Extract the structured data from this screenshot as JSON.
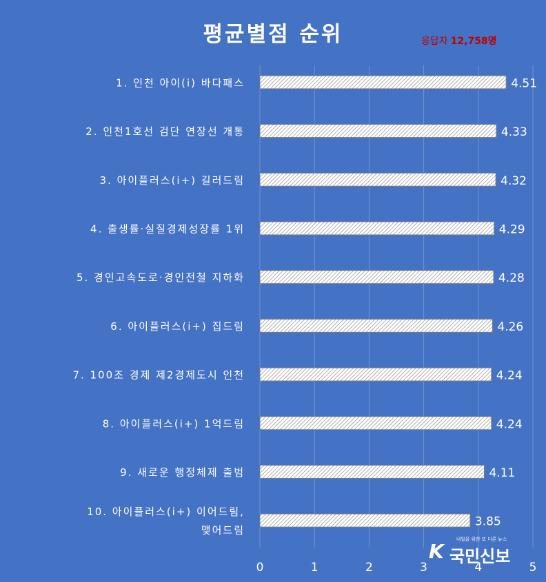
{
  "title": "평균별점 순위",
  "respondents": {
    "label": "응답자",
    "count": "12,758명"
  },
  "watermark": {
    "tagline": "내일을 위한 또 다른 뉴스",
    "name": "국민신보",
    "mark": "K"
  },
  "chart_data": {
    "type": "bar",
    "orientation": "horizontal",
    "categories": [
      "1. 인천 아이(i) 바다패스",
      "2. 인천1호선 검단 연장선 개통",
      "3. 아이플러스(i+) 길러드림",
      "4. 출생률·실질경제성장률 1위",
      "5. 경인고속도로·경인전철 지하화",
      "6. 아이플러스(i+) 집드림",
      "7. 100조 경제 제2경제도시 인천",
      "8. 아이플러스(i+) 1억드림",
      "9. 새로운 행정체제 출범",
      "10. 아이플러스(i+) 이어드림, 맺어드림"
    ],
    "category_lines": [
      [
        "1. 인천 아이(i) 바다패스"
      ],
      [
        "2. 인천1호선 검단 연장선 개통"
      ],
      [
        "3. 아이플러스(i+) 길러드림"
      ],
      [
        "4. 출생률·실질경제성장률 1위"
      ],
      [
        "5. 경인고속도로·경인전철 지하화"
      ],
      [
        "6. 아이플러스(i+) 집드림"
      ],
      [
        "7. 100조 경제 제2경제도시 인천"
      ],
      [
        "8. 아이플러스(i+) 1억드림"
      ],
      [
        "9. 새로운 행정체제 출범"
      ],
      [
        "10. 아이플러스(i+) 이어드림,",
        "맺어드림"
      ]
    ],
    "values": [
      4.51,
      4.33,
      4.32,
      4.29,
      4.28,
      4.26,
      4.24,
      4.24,
      4.11,
      3.85
    ],
    "xlim": [
      0,
      5
    ],
    "xticks": [
      "0",
      "1",
      "2",
      "3",
      "4",
      "5"
    ],
    "grid": "vertical",
    "bar_fill": "diagonal-hatch",
    "colors": {
      "background": "#4472c4",
      "bar_stroke": "#7f7f7f",
      "text": "#ffffff",
      "accent": "#c00000"
    }
  }
}
